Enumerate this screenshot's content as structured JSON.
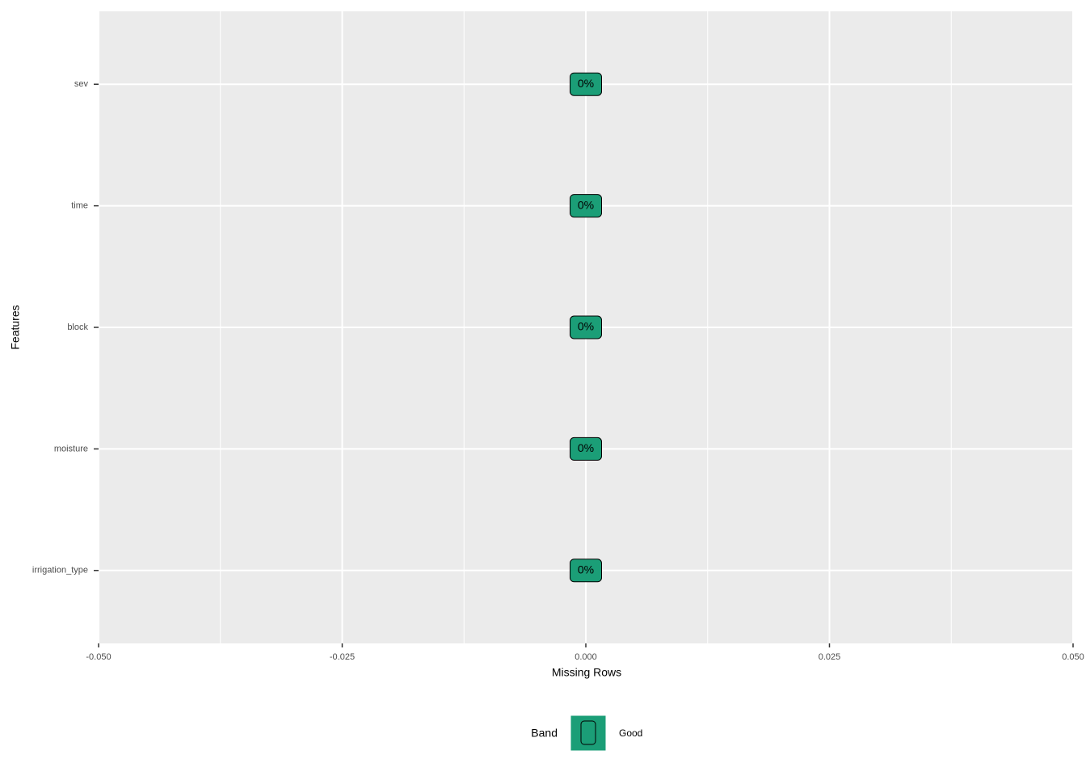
{
  "chart_data": {
    "type": "bar",
    "orientation": "horizontal",
    "categories": [
      "sev",
      "time",
      "block",
      "moisture",
      "irrigation_type"
    ],
    "series": [
      {
        "name": "Good",
        "color": "#1b9e77",
        "values": [
          0,
          0,
          0,
          0,
          0
        ],
        "value_labels": [
          "0%",
          "0%",
          "0%",
          "0%",
          "0%"
        ]
      }
    ],
    "x_label": "Missing Rows",
    "y_label": "Features",
    "legend_title": "Band",
    "legend": "bottom",
    "grid": true,
    "xlim": [
      -0.05,
      0.05
    ],
    "xticks": [
      {
        "value": -0.05,
        "label": "-0.050"
      },
      {
        "value": -0.025,
        "label": "-0.025"
      },
      {
        "value": 0,
        "label": "0.000"
      },
      {
        "value": 0.025,
        "label": "0.025"
      },
      {
        "value": 0.05,
        "label": "0.050"
      }
    ]
  }
}
